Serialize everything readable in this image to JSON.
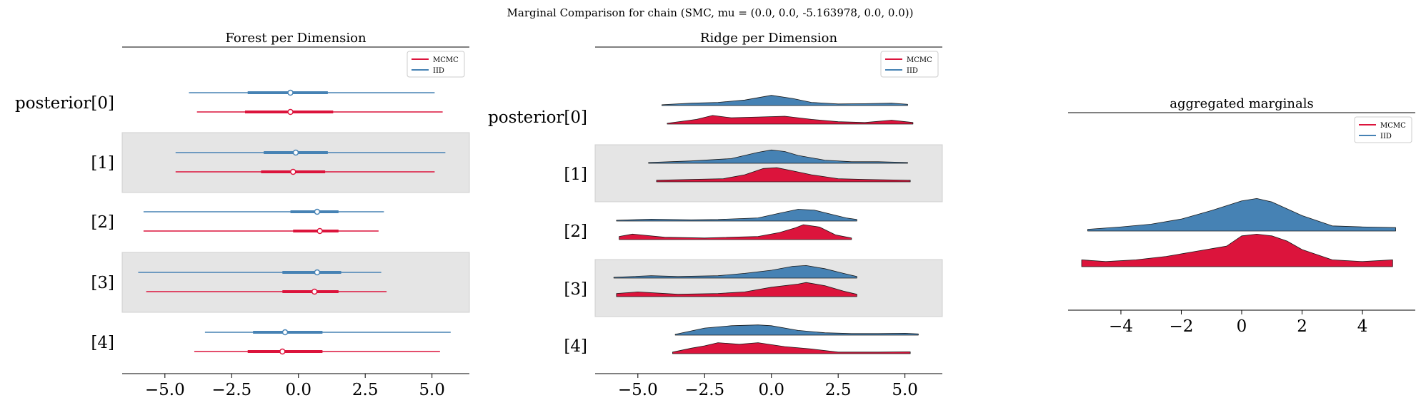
{
  "figure": {
    "suptitle": "Marginal Comparison for chain (SMC, mu = (0.0, 0.0, -5.163978, 0.0, 0.0))"
  },
  "colors": {
    "mcmc": "#dc143c",
    "iid": "#4682b4",
    "band": "#e5e5e5",
    "axis": "#000000"
  },
  "chart_data": [
    {
      "type": "forest",
      "title": "Forest per Dimension",
      "ylabels": [
        "posterior[0]",
        "[1]",
        "[2]",
        "[3]",
        "[4]"
      ],
      "xticks": [
        -5.0,
        -2.5,
        0.0,
        2.5,
        5.0
      ],
      "xtick_labels": [
        "−5.0",
        "−2.5",
        "0.0",
        "2.5",
        "5.0"
      ],
      "xlim": [
        -6.6,
        6.4
      ],
      "legend": {
        "position": "top-right",
        "entries": [
          "MCMC",
          "IID"
        ]
      },
      "series": [
        {
          "name": "IID",
          "rows": [
            {
              "lo": -4.1,
              "q1": -1.9,
              "median": -0.3,
              "q3": 1.1,
              "hi": 5.1
            },
            {
              "lo": -4.6,
              "q1": -1.3,
              "median": -0.1,
              "q3": 1.1,
              "hi": 5.5
            },
            {
              "lo": -5.8,
              "q1": -0.3,
              "median": 0.7,
              "q3": 1.5,
              "hi": 3.2
            },
            {
              "lo": -6.0,
              "q1": -0.6,
              "median": 0.7,
              "q3": 1.6,
              "hi": 3.1
            },
            {
              "lo": -3.5,
              "q1": -1.7,
              "median": -0.5,
              "q3": 0.9,
              "hi": 5.7
            }
          ]
        },
        {
          "name": "MCMC",
          "rows": [
            {
              "lo": -3.8,
              "q1": -2.0,
              "median": -0.3,
              "q3": 1.3,
              "hi": 5.4
            },
            {
              "lo": -4.6,
              "q1": -1.4,
              "median": -0.2,
              "q3": 1.0,
              "hi": 5.1
            },
            {
              "lo": -5.8,
              "q1": -0.2,
              "median": 0.8,
              "q3": 1.5,
              "hi": 3.0
            },
            {
              "lo": -5.7,
              "q1": -0.6,
              "median": 0.6,
              "q3": 1.5,
              "hi": 3.3
            },
            {
              "lo": -3.9,
              "q1": -1.9,
              "median": -0.6,
              "q3": 0.9,
              "hi": 5.3
            }
          ]
        }
      ]
    },
    {
      "type": "ridgeline",
      "title": "Ridge per Dimension",
      "ylabels": [
        "posterior[0]",
        "[1]",
        "[2]",
        "[3]",
        "[4]"
      ],
      "xticks": [
        -5.0,
        -2.5,
        0.0,
        2.5,
        5.0
      ],
      "xtick_labels": [
        "−5.0",
        "−2.5",
        "0.0",
        "2.5",
        "5.0"
      ],
      "xlim": [
        -6.6,
        6.4
      ],
      "legend": {
        "position": "top-right",
        "entries": [
          "MCMC",
          "IID"
        ]
      },
      "series": [
        {
          "name": "IID",
          "rows": [
            {
              "x": [
                -4.1,
                -3.0,
                -2.0,
                -1.0,
                0.0,
                0.8,
                1.5,
                2.5,
                3.5,
                4.5,
                5.1
              ],
              "density": [
                0.05,
                0.15,
                0.2,
                0.35,
                0.65,
                0.45,
                0.2,
                0.1,
                0.12,
                0.15,
                0.08
              ]
            },
            {
              "x": [
                -4.6,
                -3.0,
                -1.5,
                -0.5,
                0.0,
                0.5,
                1.0,
                2.0,
                3.0,
                4.0,
                5.1
              ],
              "density": [
                0.05,
                0.15,
                0.3,
                0.7,
                0.85,
                0.75,
                0.5,
                0.2,
                0.1,
                0.1,
                0.05
              ]
            },
            {
              "x": [
                -5.8,
                -4.5,
                -3.0,
                -2.0,
                -0.5,
                0.3,
                1.0,
                1.6,
                2.2,
                2.8,
                3.2
              ],
              "density": [
                0.05,
                0.12,
                0.08,
                0.1,
                0.2,
                0.5,
                0.75,
                0.7,
                0.45,
                0.2,
                0.1
              ]
            },
            {
              "x": [
                -5.9,
                -4.5,
                -3.5,
                -2.0,
                -1.0,
                0.0,
                0.8,
                1.3,
                2.0,
                2.7,
                3.2
              ],
              "density": [
                0.05,
                0.15,
                0.1,
                0.15,
                0.3,
                0.5,
                0.75,
                0.8,
                0.6,
                0.3,
                0.1
              ]
            },
            {
              "x": [
                -3.6,
                -2.5,
                -1.5,
                -0.5,
                0.0,
                1.0,
                2.0,
                3.0,
                4.0,
                5.0,
                5.5
              ],
              "density": [
                0.05,
                0.45,
                0.6,
                0.65,
                0.6,
                0.3,
                0.15,
                0.1,
                0.1,
                0.12,
                0.08
              ]
            }
          ]
        },
        {
          "name": "MCMC",
          "rows": [
            {
              "x": [
                -3.9,
                -2.8,
                -2.2,
                -1.5,
                -0.5,
                0.5,
                1.5,
                2.5,
                3.5,
                4.5,
                5.3
              ],
              "density": [
                0.05,
                0.3,
                0.55,
                0.4,
                0.45,
                0.5,
                0.3,
                0.15,
                0.1,
                0.25,
                0.1
              ]
            },
            {
              "x": [
                -4.3,
                -3.0,
                -1.8,
                -1.0,
                -0.3,
                0.2,
                0.8,
                1.5,
                2.5,
                3.5,
                5.2
              ],
              "density": [
                0.1,
                0.15,
                0.2,
                0.45,
                0.85,
                0.9,
                0.7,
                0.45,
                0.2,
                0.15,
                0.1
              ]
            },
            {
              "x": [
                -5.7,
                -5.2,
                -4.0,
                -2.5,
                -0.5,
                0.3,
                0.9,
                1.2,
                1.8,
                2.4,
                3.0
              ],
              "density": [
                0.2,
                0.35,
                0.15,
                0.1,
                0.2,
                0.45,
                0.75,
                0.95,
                0.8,
                0.3,
                0.1
              ]
            },
            {
              "x": [
                -5.8,
                -5.0,
                -3.5,
                -2.0,
                -1.0,
                0.0,
                1.0,
                1.3,
                2.0,
                2.7,
                3.2
              ],
              "density": [
                0.2,
                0.3,
                0.15,
                0.2,
                0.3,
                0.6,
                0.8,
                0.9,
                0.7,
                0.35,
                0.15
              ]
            },
            {
              "x": [
                -3.7,
                -3.0,
                -2.5,
                -2.0,
                -1.2,
                -0.5,
                0.5,
                1.5,
                2.5,
                4.0,
                5.2
              ],
              "density": [
                0.1,
                0.35,
                0.5,
                0.7,
                0.6,
                0.7,
                0.45,
                0.3,
                0.1,
                0.1,
                0.12
              ]
            }
          ]
        }
      ]
    },
    {
      "type": "ridgeline",
      "title": "aggregated marginals",
      "xticks": [
        -4,
        -2,
        0,
        2,
        4
      ],
      "xtick_labels": [
        "−4",
        "−2",
        "0",
        "2",
        "4"
      ],
      "xlim": [
        -5.75,
        5.75
      ],
      "legend": {
        "position": "top-right",
        "entries": [
          "MCMC",
          "IID"
        ]
      },
      "series": [
        {
          "name": "IID",
          "x": [
            -5.1,
            -4.0,
            -3.0,
            -2.0,
            -1.0,
            0.0,
            0.5,
            1.0,
            2.0,
            3.0,
            4.0,
            5.1
          ],
          "density": [
            0.05,
            0.12,
            0.2,
            0.35,
            0.6,
            0.88,
            0.95,
            0.85,
            0.45,
            0.15,
            0.12,
            0.1
          ]
        },
        {
          "name": "MCMC",
          "x": [
            -5.3,
            -4.5,
            -3.5,
            -2.5,
            -1.5,
            -0.5,
            0.0,
            0.5,
            1.0,
            1.5,
            2.0,
            3.0,
            4.0,
            5.0
          ],
          "density": [
            0.2,
            0.15,
            0.2,
            0.3,
            0.45,
            0.6,
            0.9,
            0.95,
            0.9,
            0.75,
            0.5,
            0.2,
            0.15,
            0.2
          ]
        }
      ]
    }
  ]
}
